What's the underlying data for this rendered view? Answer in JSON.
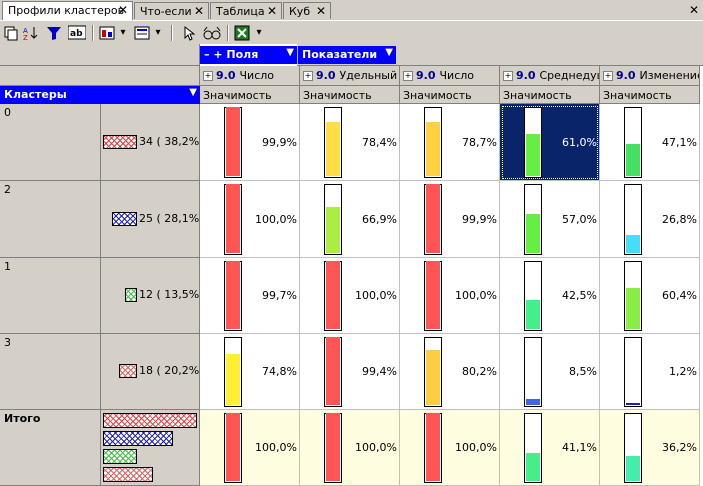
{
  "tabs": [
    {
      "label": "Профили кластеров",
      "active": true
    },
    {
      "label": "Что-если",
      "active": false
    },
    {
      "label": "Таблица",
      "active": false
    },
    {
      "label": "Куб",
      "active": false
    }
  ],
  "header": {
    "fields_label": "– + Поля",
    "indicators_label": "Показатели",
    "clusters_label": "Кластеры",
    "columns": [
      {
        "prefix": "9.0",
        "name": "Число",
        "sub": "Значимость"
      },
      {
        "prefix": "9.0",
        "name": "Удельный",
        "sub": "Значимость"
      },
      {
        "prefix": "9.0",
        "name": "Число",
        "sub": "Значимость"
      },
      {
        "prefix": "9.0",
        "name": "Среднедуш",
        "sub": "Значимость"
      },
      {
        "prefix": "9.0",
        "name": "Изменение",
        "sub": "Значимость"
      }
    ]
  },
  "rows": [
    {
      "id": "0",
      "count": "34 ( 38,2%)",
      "swatch_color": "#e04040",
      "pattern": "cross",
      "cells": [
        {
          "value": "99,9%",
          "level": 0.999,
          "color": "#ff5555"
        },
        {
          "value": "78,4%",
          "level": 0.784,
          "color": "#ffdd44"
        },
        {
          "value": "78,7%",
          "level": 0.787,
          "color": "#ffd040"
        },
        {
          "value": "61,0%",
          "level": 0.61,
          "color": "#66ee44"
        },
        {
          "value": "47,1%",
          "level": 0.471,
          "color": "#44e060"
        }
      ]
    },
    {
      "id": "2",
      "count": "25 ( 28,1%)",
      "swatch_color": "#2020c0",
      "pattern": "cross",
      "cells": [
        {
          "value": "100,0%",
          "level": 1.0,
          "color": "#ff5555"
        },
        {
          "value": "66,9%",
          "level": 0.669,
          "color": "#aaee44"
        },
        {
          "value": "99,9%",
          "level": 0.999,
          "color": "#ff5555"
        },
        {
          "value": "57,0%",
          "level": 0.57,
          "color": "#66ee44"
        },
        {
          "value": "26,8%",
          "level": 0.268,
          "color": "#44ddff"
        }
      ]
    },
    {
      "id": "1",
      "count": "12 ( 13,5%)",
      "swatch_color": "#40c040",
      "pattern": "cross",
      "cells": [
        {
          "value": "99,7%",
          "level": 0.997,
          "color": "#ff5555"
        },
        {
          "value": "100,0%",
          "level": 1.0,
          "color": "#ff5555"
        },
        {
          "value": "100,0%",
          "level": 1.0,
          "color": "#ff5555"
        },
        {
          "value": "42,5%",
          "level": 0.425,
          "color": "#44ee88"
        },
        {
          "value": "60,4%",
          "level": 0.604,
          "color": "#88ee44"
        }
      ]
    },
    {
      "id": "3",
      "count": "18 ( 20,2%)",
      "swatch_color": "#e06060",
      "pattern": "cross",
      "cells": [
        {
          "value": "74,8%",
          "level": 0.748,
          "color": "#ffee33"
        },
        {
          "value": "99,4%",
          "level": 0.994,
          "color": "#ff5555"
        },
        {
          "value": "80,2%",
          "level": 0.802,
          "color": "#ffcc44"
        },
        {
          "value": "8,5%",
          "level": 0.085,
          "color": "#4466dd"
        },
        {
          "value": "1,2%",
          "level": 0.012,
          "color": "#2222aa"
        }
      ]
    }
  ],
  "total": {
    "label": "Итого",
    "bars": [
      {
        "level": 1.0,
        "color": "#e04040"
      },
      {
        "level": 0.74,
        "color": "#2020c0"
      },
      {
        "level": 0.36,
        "color": "#40c040"
      },
      {
        "level": 0.53,
        "color": "#e06060"
      }
    ],
    "cells": [
      {
        "value": "100,0%",
        "level": 1.0,
        "color": "#ff5555"
      },
      {
        "value": "100,0%",
        "level": 1.0,
        "color": "#ff5555"
      },
      {
        "value": "100,0%",
        "level": 1.0,
        "color": "#ff5555"
      },
      {
        "value": "41,1%",
        "level": 0.411,
        "color": "#44ee88"
      },
      {
        "value": "36,2%",
        "level": 0.362,
        "color": "#44eeaa"
      }
    ]
  },
  "selection": {
    "row": 0,
    "col": 3
  },
  "toolbar": [
    "copy-icon",
    "sort-az-icon",
    "filter-icon",
    "ab-icon",
    "chart-icon",
    "dropdown-arrow-icon",
    "table-view-icon",
    "dropdown-arrow-icon",
    "cursor-icon",
    "glasses-icon",
    "excel-icon",
    "dropdown-arrow-icon"
  ]
}
